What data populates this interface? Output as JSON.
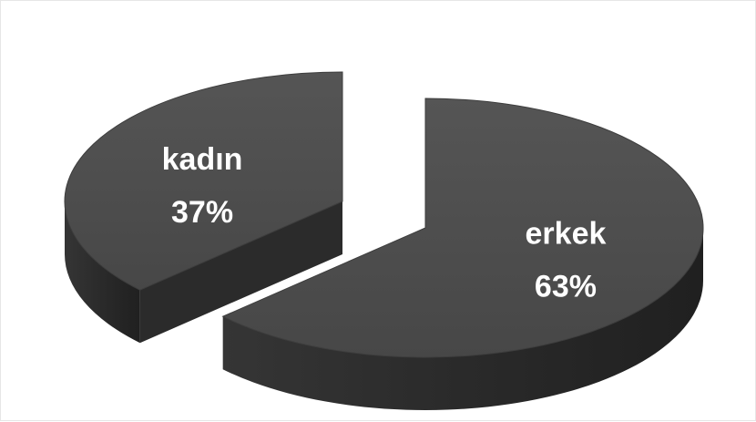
{
  "chart_data": {
    "type": "pie",
    "style": "3d-exploded",
    "title": "",
    "slices": [
      {
        "label": "erkek",
        "value": 63,
        "value_label": "63%"
      },
      {
        "label": "kadın",
        "value": 37,
        "value_label": "37%"
      }
    ],
    "colors": {
      "top": "#4a4a4a",
      "side": "#2b2b2b",
      "side_dark": "#1f1f1f",
      "label": "#ffffff",
      "background": "#ffffff"
    }
  }
}
